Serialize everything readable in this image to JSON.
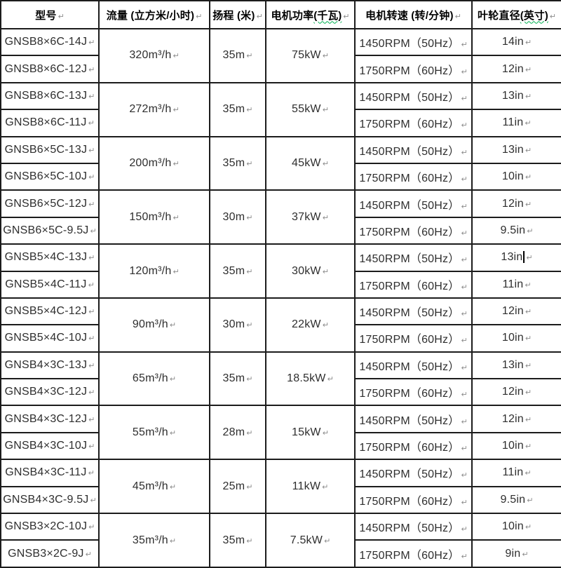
{
  "marks": {
    "cell_end": "↵"
  },
  "colors": {
    "border": "#1c1c1c",
    "squiggle_green": "#00b050",
    "paragraph_mark_gray": "#8c8c8c",
    "text": "#2e2e2e",
    "background": "#ffffff"
  },
  "table": {
    "headers": [
      {
        "label": "型号",
        "squiggle": ""
      },
      {
        "label": "流量 (立方米/小时)",
        "squiggle": ""
      },
      {
        "label": "扬程 (米)",
        "squiggle": ""
      },
      {
        "label": "电机功率",
        "squiggle": "(千瓦)"
      },
      {
        "label": "电机转速 (转/分钟)",
        "squiggle": ""
      },
      {
        "label": "叶轮直径",
        "squiggle": "(英寸)"
      }
    ],
    "caret_position": {
      "group": 4,
      "row": 0
    },
    "groups": [
      {
        "models": [
          "GNSB8×6C-14J",
          "GNSB8×6C-12J"
        ],
        "flow": "320m³/h",
        "head": "35m",
        "power": "75kW",
        "rpm": [
          "1450RPM（50Hz）",
          "1750RPM（60Hz）"
        ],
        "diameters": [
          "14in",
          "12in"
        ]
      },
      {
        "models": [
          "GNSB8×6C-13J",
          "GNSB8×6C-11J"
        ],
        "flow": "272m³/h",
        "head": "35m",
        "power": "55kW",
        "rpm": [
          "1450RPM（50Hz）",
          "1750RPM（60Hz）"
        ],
        "diameters": [
          "13in",
          "11in"
        ]
      },
      {
        "models": [
          "GNSB6×5C-13J",
          "GNSB6×5C-10J"
        ],
        "flow": "200m³/h",
        "head": "35m",
        "power": "45kW",
        "rpm": [
          "1450RPM（50Hz）",
          "1750RPM（60Hz）"
        ],
        "diameters": [
          "13in",
          "10in"
        ]
      },
      {
        "models": [
          "GNSB6×5C-12J",
          "GNSB6×5C-9.5J"
        ],
        "flow": "150m³/h",
        "head": "30m",
        "power": "37kW",
        "rpm": [
          "1450RPM（50Hz）",
          "1750RPM（60Hz）"
        ],
        "diameters": [
          "12in",
          "9.5in"
        ]
      },
      {
        "models": [
          "GNSB5×4C-13J",
          "GNSB5×4C-11J"
        ],
        "flow": "120m³/h",
        "head": "35m",
        "power": "30kW",
        "rpm": [
          "1450RPM（50Hz）",
          "1750RPM（60Hz）"
        ],
        "diameters": [
          "13in",
          "11in"
        ]
      },
      {
        "models": [
          "GNSB5×4C-12J",
          "GNSB5×4C-10J"
        ],
        "flow": "90m³/h",
        "head": "30m",
        "power": "22kW",
        "rpm": [
          "1450RPM（50Hz）",
          "1750RPM（60Hz）"
        ],
        "diameters": [
          "12in",
          "10in"
        ]
      },
      {
        "models": [
          "GNSB4×3C-13J",
          "GNSB4×3C-12J"
        ],
        "flow": "65m³/h",
        "head": "35m",
        "power": "18.5kW",
        "rpm": [
          "1450RPM（50Hz）",
          "1750RPM（60Hz）"
        ],
        "diameters": [
          "13in",
          "12in"
        ]
      },
      {
        "models": [
          "GNSB4×3C-12J",
          "GNSB4×3C-10J"
        ],
        "flow": "55m³/h",
        "head": "28m",
        "power": "15kW",
        "rpm": [
          "1450RPM（50Hz）",
          "1750RPM（60Hz）"
        ],
        "diameters": [
          "12in",
          "10in"
        ]
      },
      {
        "models": [
          "GNSB4×3C-11J",
          "GNSB4×3C-9.5J"
        ],
        "flow": "45m³/h",
        "head": "25m",
        "power": "11kW",
        "rpm": [
          "1450RPM（50Hz）",
          "1750RPM（60Hz）"
        ],
        "diameters": [
          "11in",
          "9.5in"
        ]
      },
      {
        "models": [
          "GNSB3×2C-10J",
          "GNSB3×2C-9J"
        ],
        "flow": "35m³/h",
        "head": "35m",
        "power": "7.5kW",
        "rpm": [
          "1450RPM（50Hz）",
          "1750RPM（60Hz）"
        ],
        "diameters": [
          "10in",
          "9in"
        ]
      }
    ]
  }
}
